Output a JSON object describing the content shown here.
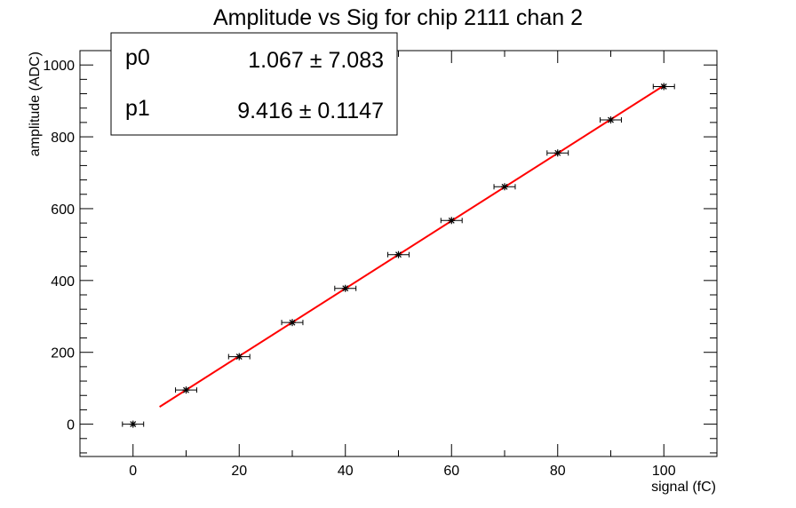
{
  "chart_data": {
    "type": "scatter",
    "title": "Amplitude vs Sig for chip 2111 chan 2",
    "xlabel": "signal (fC)",
    "ylabel": "amplitude (ADC)",
    "xlim": [
      -10,
      110
    ],
    "ylim": [
      -90,
      1040
    ],
    "x_ticks": [
      0,
      20,
      40,
      60,
      80,
      100
    ],
    "y_ticks": [
      0,
      200,
      400,
      600,
      800,
      1000
    ],
    "grid": false,
    "series": [
      {
        "x": [
          0,
          10,
          20,
          30,
          40,
          50,
          60,
          70,
          80,
          90,
          100
        ],
        "y": [
          0,
          95,
          188,
          283,
          378,
          472,
          567,
          661,
          755,
          847,
          940
        ],
        "x_err": 2,
        "y_err": 6,
        "color": "#000000",
        "marker": "star"
      }
    ],
    "fit": {
      "type": "linear",
      "x_range": [
        5,
        100
      ],
      "p0": 1.067,
      "p1": 9.416,
      "color": "#ff0000"
    },
    "stats_box": {
      "position": "top-left",
      "rows": [
        {
          "label": "p0",
          "value": "1.067 ± 7.083"
        },
        {
          "label": "p1",
          "value": "9.416 ± 0.1147"
        }
      ]
    }
  }
}
